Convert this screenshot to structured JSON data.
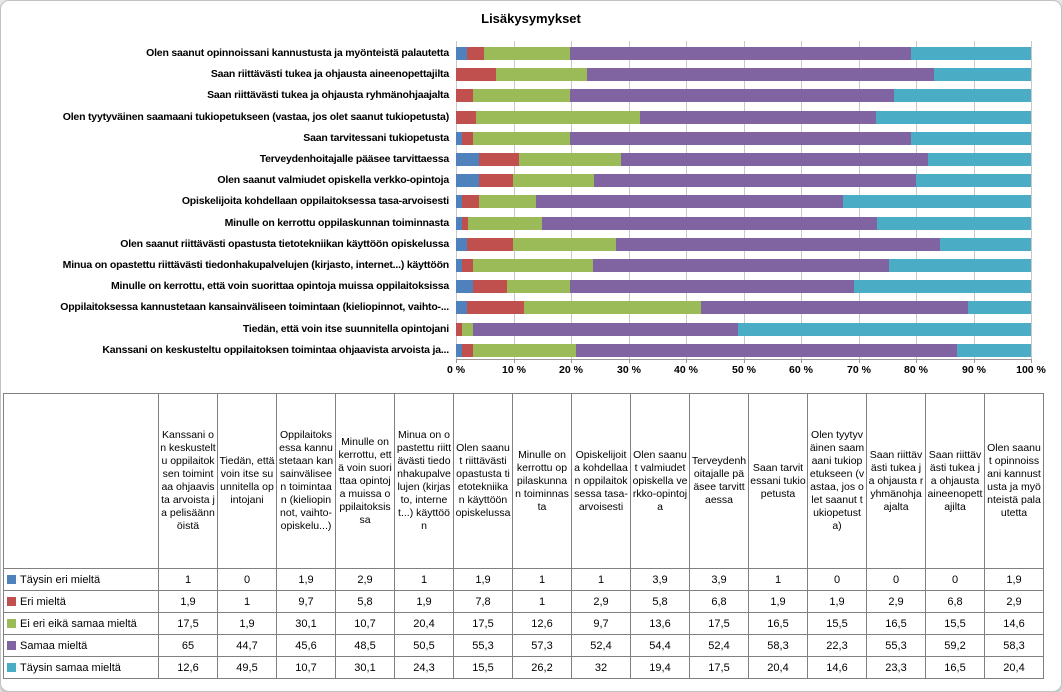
{
  "frame": {
    "background": "#ffffff",
    "border_color": "#c2c2c2"
  },
  "chart_data": {
    "type": "bar",
    "variant": "100%-stacked-horizontal",
    "title": "Lisäkysymykset",
    "xlabel": "",
    "ylabel": "",
    "x_axis": {
      "min": 0,
      "max": 100,
      "tick_labels": [
        "0 %",
        "10 %",
        "20 %",
        "30 %",
        "40 %",
        "50 %",
        "60 %",
        "70 %",
        "80 %",
        "90 %",
        "100 %"
      ],
      "gridlines": true
    },
    "legend_position": "in-table-row-labels",
    "normalization": "each bar scaled to 100% of its category total",
    "categories_top_to_bottom": [
      "Olen saanut opinnoissani kannustusta ja myönteistä palautetta",
      "Saan riittävästi tukea ja ohjausta aineenopettajilta",
      "Saan riittävästi tukea ja ohjausta ryhmänohjaajalta",
      "Olen tyytyväinen saamaani tukiopetukseen (vastaa, jos olet saanut tukiopetusta)",
      "Saan tarvitessani tukiopetusta",
      "Terveydenhoitajalle pääsee tarvittaessa",
      "Olen saanut valmiudet opiskella verkko-opintoja",
      "Opiskelijoita kohdellaan oppilaitoksessa tasa-arvoisesti",
      "Minulle on kerrottu oppilaskunnan toiminnasta",
      "Olen saanut riittävästi opastusta tietotekniikan käyttöön opiskelussa",
      "Minua on opastettu riittävästi tiedonhakupalvelujen (kirjasto, internet...) käyttöön",
      "Minulle on kerrottu, että voin suorittaa opintoja muissa oppilaitoksissa",
      "Oppilaitoksessa kannustetaan kansainväliseen toimintaan (kieliopinnot, vaihto-...",
      "Tiedän, että voin itse suunnitella opintojani",
      "Kanssani on keskusteltu oppilaitoksen toimintaa ohjaavista arvoista ja..."
    ],
    "table_columns_left_to_right": [
      "Kanssani on keskusteltu oppilaitoksen toimintaa ohjaavista arvoista ja pelisäännöistä",
      "Tiedän, että voin itse suunnitella opintojani",
      "Oppilaitoksessa kannustetaan kansainväliseen toimintaan (kieliopinnot, vaihto-opiskelu...)",
      "Minulle on kerrottu, että voin suorittaa opintoja muissa oppilaitoksissa",
      "Minua on opastettu riittävästi tiedonhakupalvelujen (kirjasto, internet...) käyttöön",
      "Olen saanut riittävästi opastusta tietotekniikan käyttöön opiskelussa",
      "Minulle on kerrottu oppilaskunnan toiminnasta",
      "Opiskelijoita kohdellaan oppilaitoksessa tasa-arvoisesti",
      "Olen saanut valmiudet opiskella verkko-opintoja",
      "Terveydenhoitajalle pääsee tarvittaessa",
      "Saan tarvitessani tukiopetusta",
      "Olen tyytyväinen saamaani tukiopetukseen (vastaa, jos olet saanut tukiopetusta)",
      "Saan riittävästi tukea ja ohjausta ryhmänohjaajalta",
      "Saan riittävästi tukea ja ohjausta aineenopettajilta",
      "Olen saanut opinnoissani kannustusta ja myönteistä palautetta"
    ],
    "series": [
      {
        "name": "Täysin eri mieltä",
        "color": "#4f81bd",
        "values": [
          1,
          0,
          1.9,
          2.9,
          1,
          1.9,
          1,
          1,
          3.9,
          3.9,
          1,
          0,
          0,
          0,
          1.9
        ]
      },
      {
        "name": "Eri mieltä",
        "color": "#c0504d",
        "values": [
          1.9,
          1,
          9.7,
          5.8,
          1.9,
          7.8,
          1,
          2.9,
          5.8,
          6.8,
          1.9,
          1.9,
          2.9,
          6.8,
          2.9
        ]
      },
      {
        "name": "Ei eri eikä samaa mieltä",
        "color": "#9bbb59",
        "values": [
          17.5,
          1.9,
          30.1,
          10.7,
          20.4,
          17.5,
          12.6,
          9.7,
          13.6,
          17.5,
          16.5,
          15.5,
          16.5,
          15.5,
          14.6
        ]
      },
      {
        "name": "Samaa mieltä",
        "color": "#8064a2",
        "values": [
          65,
          44.7,
          45.6,
          48.5,
          50.5,
          55.3,
          57.3,
          52.4,
          54.4,
          52.4,
          58.3,
          22.3,
          55.3,
          59.2,
          58.3
        ]
      },
      {
        "name": "Täysin samaa mieltä",
        "color": "#4bacc6",
        "values": [
          12.6,
          49.5,
          10.7,
          30.1,
          24.3,
          15.5,
          26.2,
          32,
          19.4,
          17.5,
          20.4,
          14.6,
          23.3,
          16.5,
          20.4
        ]
      }
    ],
    "value_display": "decimal-comma"
  }
}
